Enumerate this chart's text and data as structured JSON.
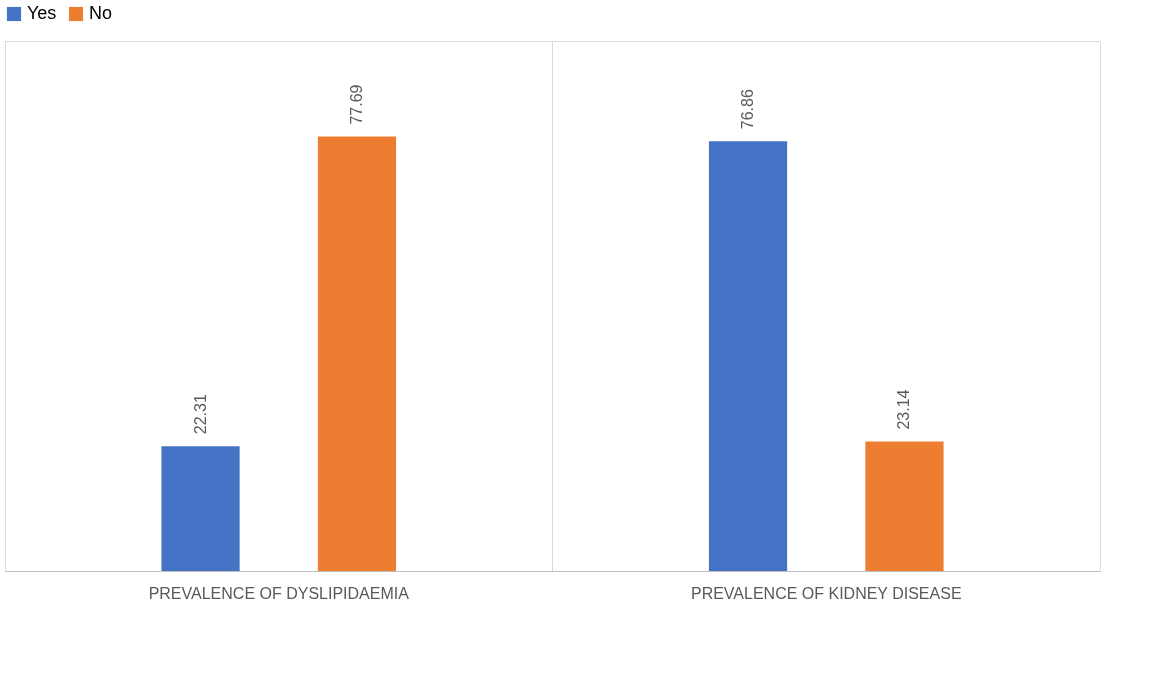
{
  "chart_data": {
    "type": "bar",
    "categories": [
      "PREVALENCE OF DYSLIPIDAEMIA",
      "PREVALENCE OF KIDNEY DISEASE"
    ],
    "series": [
      {
        "name": "Yes",
        "color": "#4472c4",
        "values": [
          22.31,
          76.86
        ]
      },
      {
        "name": "No",
        "color": "#ed7d31",
        "values": [
          77.69,
          23.14
        ]
      }
    ],
    "data_labels": true,
    "legend": "top",
    "grid": "x"
  }
}
